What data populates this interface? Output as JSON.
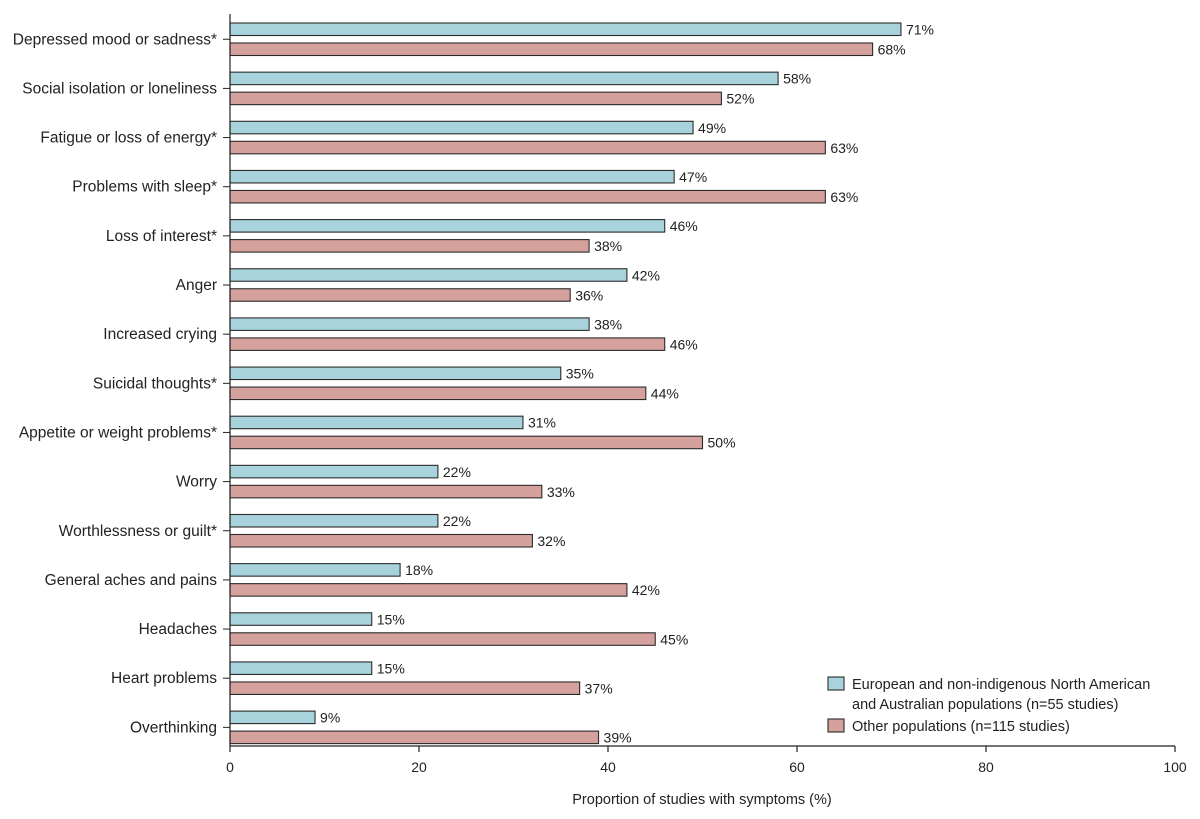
{
  "chart_data": {
    "type": "bar",
    "orientation": "horizontal",
    "title": "",
    "xlabel": "Proportion of studies with symptoms (%)",
    "ylabel": "",
    "xlim": [
      0,
      100
    ],
    "xticks": [
      0,
      20,
      40,
      60,
      80,
      100
    ],
    "grid": false,
    "legend_position": "bottom-right",
    "categories": [
      "Depressed mood or sadness*",
      "Social isolation or loneliness",
      "Fatigue or loss of energy*",
      "Problems with sleep*",
      "Loss of interest*",
      "Anger",
      "Increased crying",
      "Suicidal thoughts*",
      "Appetite or weight problems*",
      "Worry",
      "Worthlessness or guilt*",
      "General aches and pains",
      "Headaches",
      "Heart problems",
      "Overthinking"
    ],
    "series": [
      {
        "name": "European and non-indigenous North American and Australian populations (n=55 studies)",
        "legend_lines": [
          "European and non-indigenous North American",
          "and Australian populations (n=55 studies)"
        ],
        "color": "#a9d3dc",
        "values": [
          71,
          58,
          49,
          47,
          46,
          42,
          38,
          35,
          31,
          22,
          22,
          18,
          15,
          15,
          9
        ]
      },
      {
        "name": "Other populations (n=115 studies)",
        "legend_lines": [
          "Other populations (n=115 studies)"
        ],
        "color": "#d4a19c",
        "values": [
          68,
          52,
          63,
          63,
          38,
          36,
          46,
          44,
          50,
          33,
          32,
          42,
          45,
          37,
          39
        ]
      }
    ],
    "value_suffix": "%"
  }
}
